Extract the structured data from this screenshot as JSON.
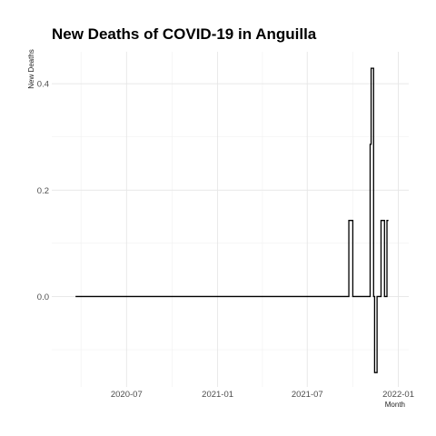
{
  "chart_data": {
    "type": "line",
    "title": "New Deaths of COVID-19 in Anguilla",
    "xlabel": "Month",
    "ylabel": "New Deaths",
    "x_axis_type": "date",
    "xlim": [
      "2020-02-01",
      "2022-01-22"
    ],
    "ylim": [
      -0.17,
      0.46
    ],
    "x_ticks": [
      "2020-07-01",
      "2021-01-01",
      "2021-07-01",
      "2022-01-01"
    ],
    "x_tick_labels": [
      "2020-07",
      "2021-01",
      "2021-07",
      "2022-01"
    ],
    "y_ticks": [
      0.0,
      0.2,
      0.4
    ],
    "y_tick_labels": [
      "0.0",
      "0.2",
      "0.4"
    ],
    "grid": true,
    "legend": "none",
    "line_color": "#000000",
    "series": [
      {
        "points": [
          [
            "2020-03-20",
            0
          ],
          [
            "2021-09-23",
            0
          ],
          [
            "2021-09-23",
            0.143
          ],
          [
            "2021-10-01",
            0.143
          ],
          [
            "2021-10-01",
            0
          ],
          [
            "2021-11-05",
            0
          ],
          [
            "2021-11-05",
            0.286
          ],
          [
            "2021-11-07",
            0.286
          ],
          [
            "2021-11-07",
            0.429
          ],
          [
            "2021-11-12",
            0.429
          ],
          [
            "2021-11-12",
            0
          ],
          [
            "2021-11-14",
            0
          ],
          [
            "2021-11-14",
            -0.143
          ],
          [
            "2021-11-19",
            -0.143
          ],
          [
            "2021-11-19",
            0
          ],
          [
            "2021-11-27",
            0
          ],
          [
            "2021-11-27",
            0.143
          ],
          [
            "2021-12-04",
            0.143
          ],
          [
            "2021-12-04",
            0
          ],
          [
            "2021-12-09",
            0
          ],
          [
            "2021-12-09",
            0.143
          ],
          [
            "2021-12-12",
            0.143
          ]
        ]
      }
    ]
  }
}
